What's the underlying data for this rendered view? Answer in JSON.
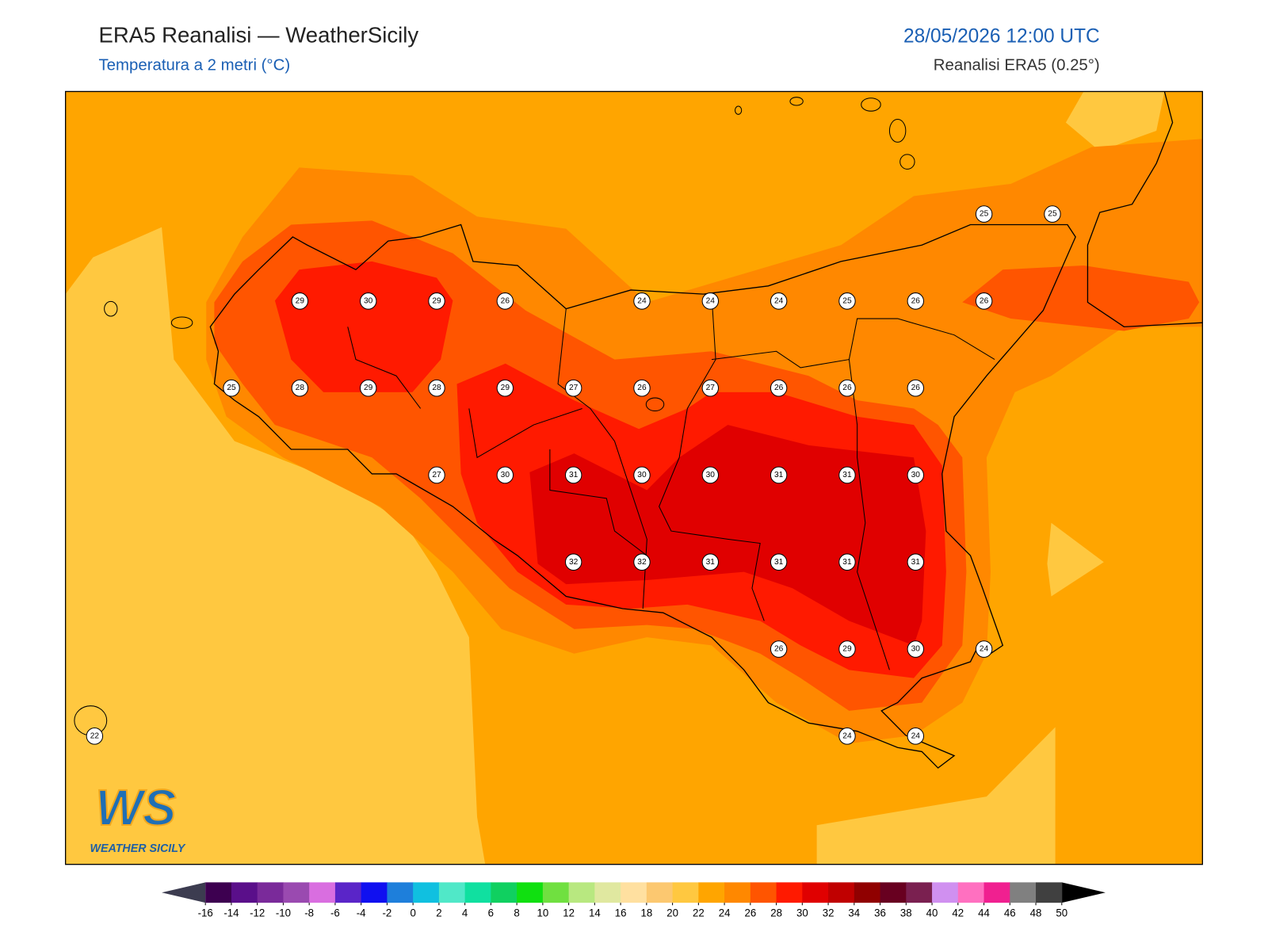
{
  "header": {
    "title": "ERA5 Reanalisi — WeatherSicily",
    "subtitle": "Temperatura a 2 metri (°C)",
    "date": "28/05/2026 12:00 UTC",
    "source": "Reanalisi ERA5 (0.25°)"
  },
  "map": {
    "stations": [
      [
        null,
        null,
        null,
        null,
        null,
        null,
        null,
        null,
        null,
        null,
        null,
        null,
        null,
        25,
        25
      ],
      [
        null,
        null,
        null,
        29,
        30,
        29,
        26,
        null,
        24,
        24,
        24,
        25,
        26,
        26,
        null
      ],
      [
        null,
        null,
        25,
        28,
        29,
        28,
        29,
        27,
        26,
        27,
        26,
        26,
        26,
        null,
        null
      ],
      [
        null,
        null,
        null,
        null,
        null,
        27,
        30,
        31,
        30,
        30,
        31,
        31,
        30,
        null,
        null
      ],
      [
        null,
        null,
        null,
        null,
        null,
        null,
        null,
        32,
        32,
        31,
        31,
        31,
        31,
        null,
        null
      ],
      [
        null,
        null,
        null,
        null,
        null,
        null,
        null,
        null,
        null,
        null,
        26,
        29,
        30,
        24,
        null
      ],
      [
        22,
        null,
        null,
        null,
        null,
        null,
        null,
        null,
        null,
        null,
        null,
        24,
        24,
        null,
        null
      ]
    ]
  },
  "colorbar": {
    "ticks": [
      -16,
      -14,
      -12,
      -10,
      -8,
      -6,
      -4,
      -2,
      0,
      2,
      4,
      6,
      8,
      10,
      12,
      14,
      16,
      18,
      20,
      22,
      24,
      26,
      28,
      30,
      32,
      34,
      36,
      38,
      40,
      42,
      44,
      46,
      48,
      50
    ],
    "colors": [
      "#3d0050",
      "#5a0f8a",
      "#7a2a9a",
      "#9a4ab0",
      "#d96ee0",
      "#5a25c8",
      "#1010f0",
      "#1e7fdb",
      "#10c0e0",
      "#50e8c8",
      "#10e0a0",
      "#10d060",
      "#10e010",
      "#70e040",
      "#b8e880",
      "#e0e8a0",
      "#ffe0a0",
      "#fcc870",
      "#ffc840",
      "#ffa500",
      "#ff8800",
      "#ff5500",
      "#ff1a00",
      "#e00000",
      "#c00000",
      "#900000",
      "#680020",
      "#7a2050",
      "#d090f0",
      "#ff70c0",
      "#f02090",
      "#808080",
      "#404040"
    ],
    "under_color": "#3c3c50",
    "over_color": "#000000"
  },
  "logo": {
    "mark": "WS",
    "name": "WEATHER SICILY"
  }
}
